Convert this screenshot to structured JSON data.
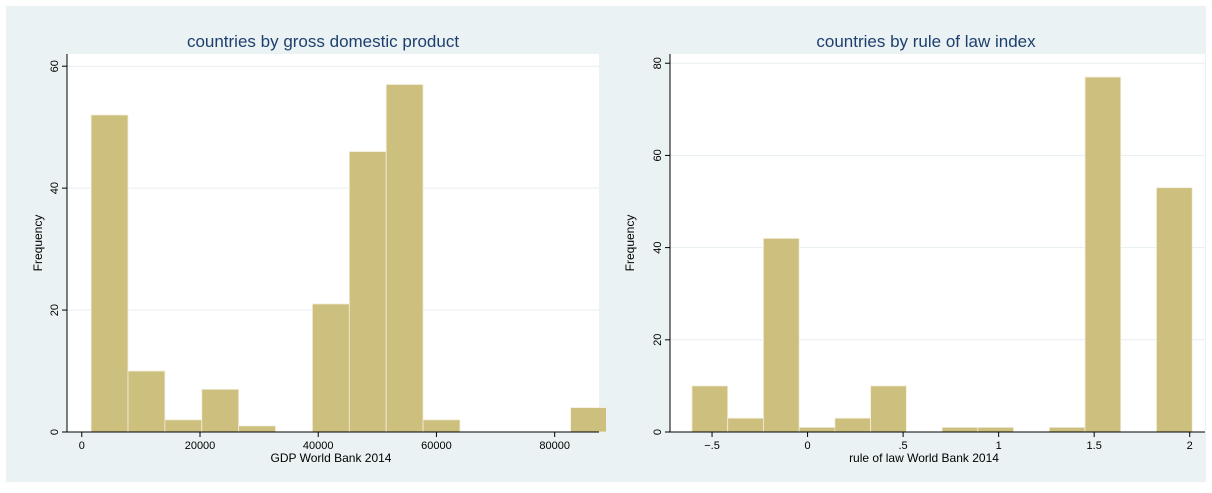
{
  "colors": {
    "outer_background": "#eaf2f3",
    "plot_background": "#ffffff",
    "bar_fill": "#cdc07e",
    "bar_stroke": "#f3eddc",
    "title_color": "#1e3f6e",
    "gridline": "#e6eef0",
    "axis": "#000000"
  },
  "chart_data": [
    {
      "type": "bar",
      "title": "countries by gross domestic product",
      "xlabel": "GDP World Bank 2014",
      "ylabel": "Frequency",
      "xlim": [
        -2500,
        87500
      ],
      "ylim": [
        0,
        62
      ],
      "xticks": [
        0,
        20000,
        40000,
        60000,
        80000
      ],
      "xtick_labels": [
        "0",
        "20000",
        "40000",
        "60000",
        "80000"
      ],
      "yticks": [
        0,
        20,
        40,
        60
      ],
      "ytick_labels": [
        "0",
        "20",
        "40",
        "60"
      ],
      "grid": true,
      "bin_width": 6240,
      "bins": [
        {
          "x0": 1580,
          "x1": 7820,
          "value": 52
        },
        {
          "x0": 7820,
          "x1": 14060,
          "value": 10
        },
        {
          "x0": 14060,
          "x1": 20300,
          "value": 2
        },
        {
          "x0": 20300,
          "x1": 26540,
          "value": 7
        },
        {
          "x0": 26540,
          "x1": 32780,
          "value": 1
        },
        {
          "x0": 32780,
          "x1": 39020,
          "value": 0
        },
        {
          "x0": 39020,
          "x1": 45260,
          "value": 21
        },
        {
          "x0": 45260,
          "x1": 51500,
          "value": 46
        },
        {
          "x0": 51500,
          "x1": 57740,
          "value": 57
        },
        {
          "x0": 57740,
          "x1": 63980,
          "value": 2
        },
        {
          "x0": 63980,
          "x1": 70220,
          "value": 0
        },
        {
          "x0": 70220,
          "x1": 76460,
          "value": 0
        },
        {
          "x0": 76460,
          "x1": 82700,
          "value": 0
        },
        {
          "x0": 82700,
          "x1": 88940,
          "value": 4
        }
      ]
    },
    {
      "type": "bar",
      "title": "countries by rule of law index",
      "xlabel": "rule of law World Bank 2014",
      "ylabel": "Frequency",
      "xlim": [
        -0.72,
        2.08
      ],
      "ylim": [
        0,
        82
      ],
      "xticks": [
        -0.5,
        0,
        0.5,
        1,
        1.5,
        2
      ],
      "xtick_labels": [
        "−.5",
        "0",
        ".5",
        "1",
        "1.5",
        "2"
      ],
      "yticks": [
        0,
        20,
        40,
        60,
        80
      ],
      "ytick_labels": [
        "0",
        "20",
        "40",
        "60",
        "80"
      ],
      "grid": true,
      "bin_width": 0.187,
      "bins": [
        {
          "x0": -0.605,
          "x1": -0.418,
          "value": 10
        },
        {
          "x0": -0.418,
          "x1": -0.231,
          "value": 3
        },
        {
          "x0": -0.231,
          "x1": -0.044,
          "value": 42
        },
        {
          "x0": -0.044,
          "x1": 0.143,
          "value": 1
        },
        {
          "x0": 0.143,
          "x1": 0.33,
          "value": 3
        },
        {
          "x0": 0.33,
          "x1": 0.517,
          "value": 10
        },
        {
          "x0": 0.517,
          "x1": 0.704,
          "value": 0
        },
        {
          "x0": 0.704,
          "x1": 0.891,
          "value": 1
        },
        {
          "x0": 0.891,
          "x1": 1.078,
          "value": 1
        },
        {
          "x0": 1.078,
          "x1": 1.265,
          "value": 0
        },
        {
          "x0": 1.265,
          "x1": 1.452,
          "value": 1
        },
        {
          "x0": 1.452,
          "x1": 1.639,
          "value": 77
        },
        {
          "x0": 1.639,
          "x1": 1.826,
          "value": 0
        },
        {
          "x0": 1.826,
          "x1": 2.013,
          "value": 53
        }
      ]
    }
  ]
}
